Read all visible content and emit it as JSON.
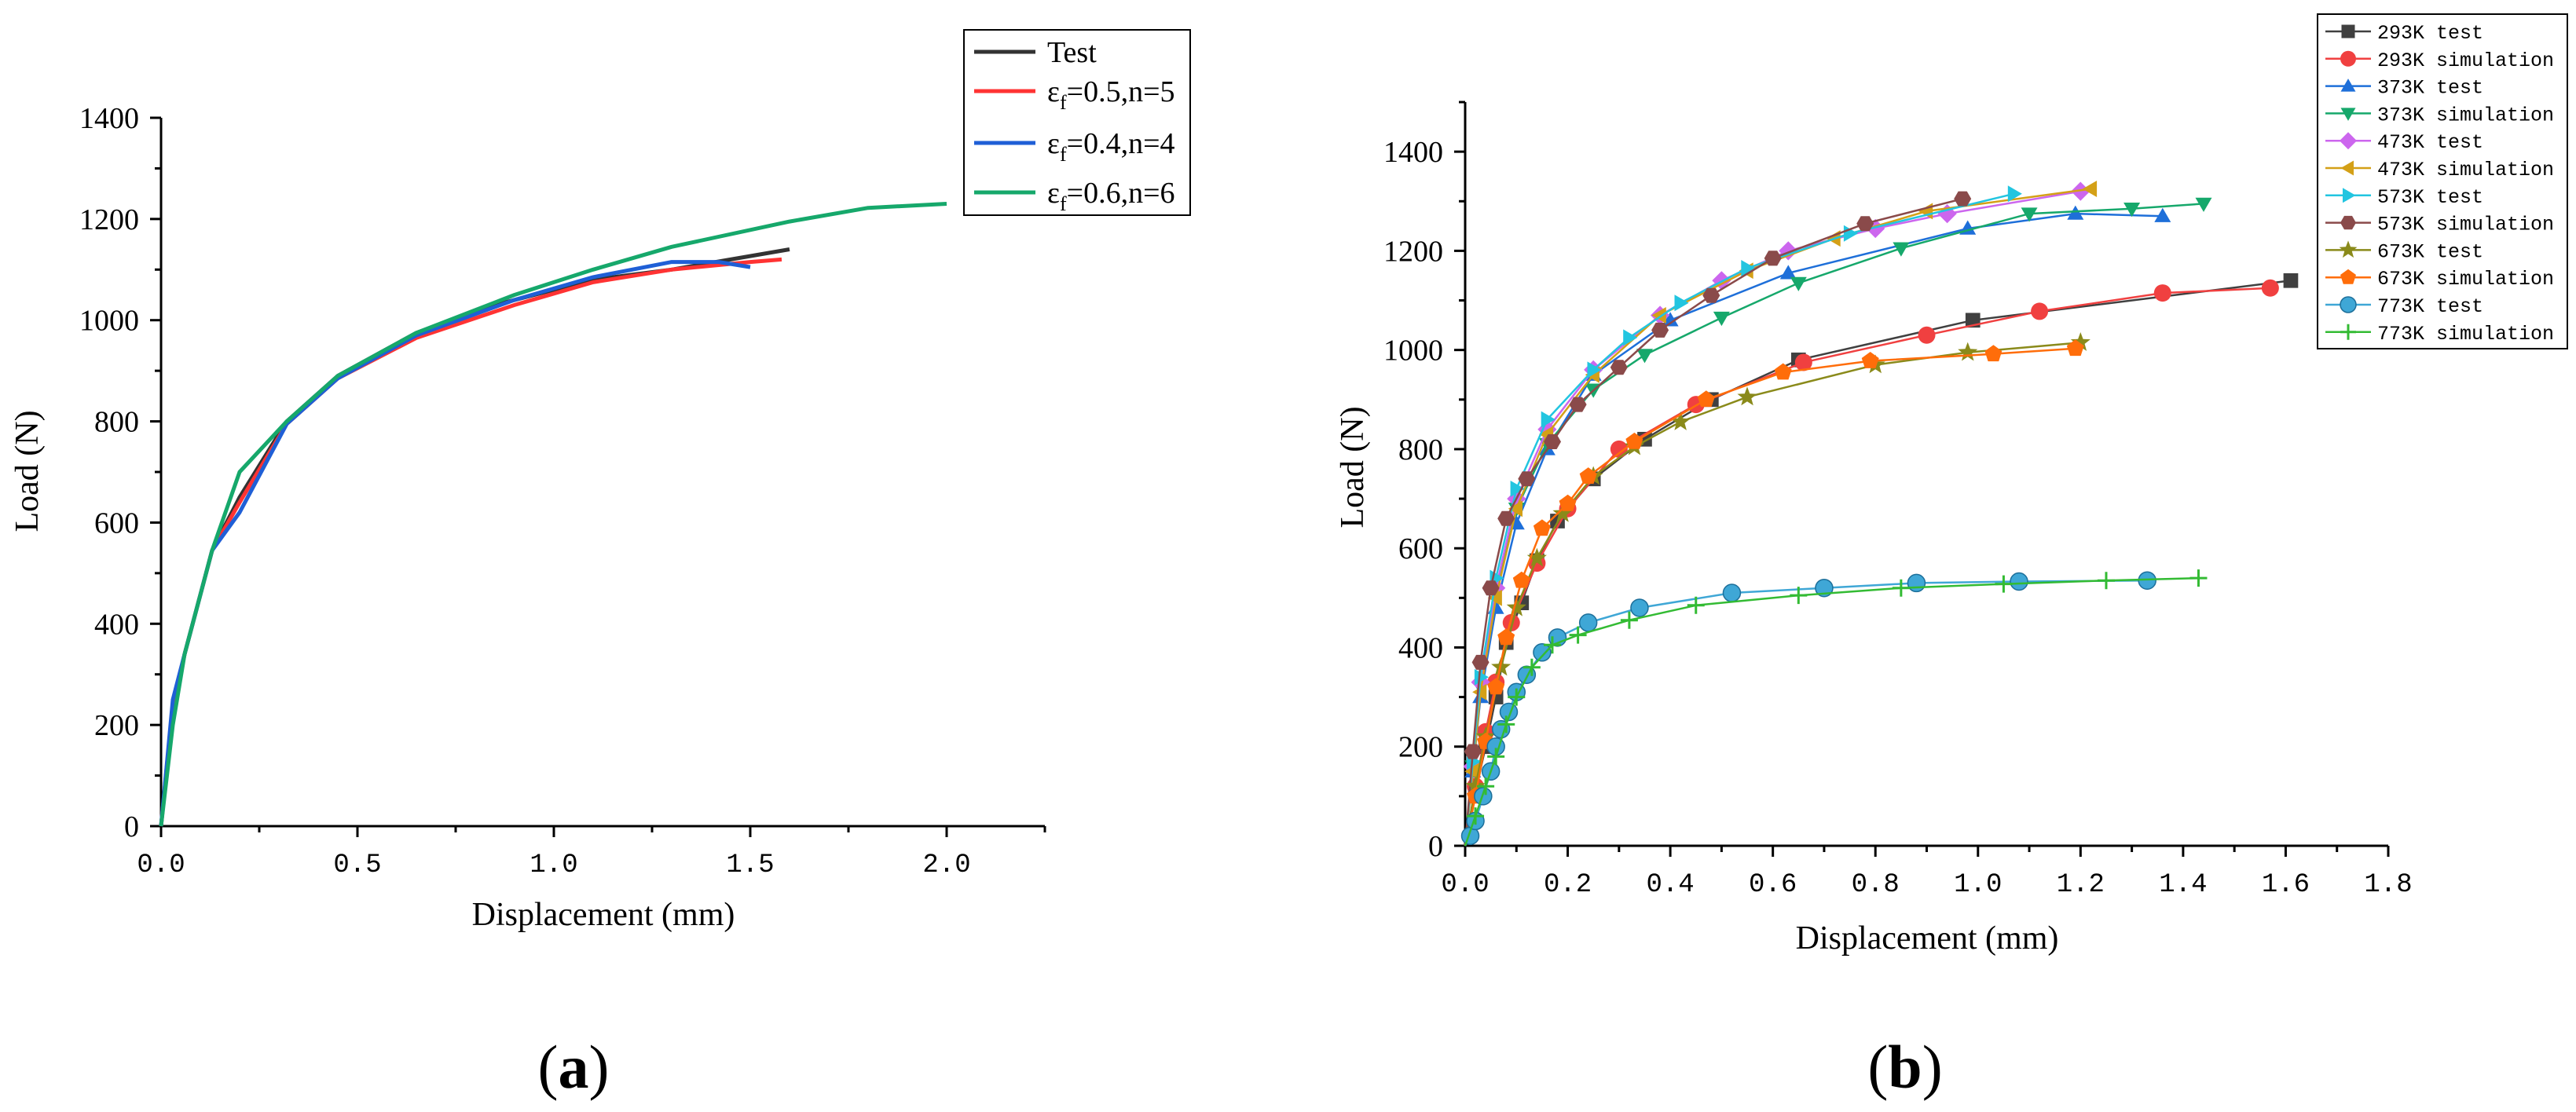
{
  "chart_data": [
    {
      "id": "a",
      "type": "line",
      "panel_label": {
        "open": "(",
        "letter": "a",
        "close": ")"
      },
      "xlabel": "Displacement (mm)",
      "ylabel": "Load (N)",
      "xlim": [
        0,
        2.25
      ],
      "ylim": [
        0,
        1400
      ],
      "x_ticks": [
        "0.0",
        "0.5",
        "1.0",
        "1.5",
        "2.0"
      ],
      "y_ticks": [
        "0",
        "200",
        "400",
        "600",
        "800",
        "1000",
        "1200",
        "1400"
      ],
      "legend_position": "top-right",
      "series": [
        {
          "name": "Test",
          "sym": "",
          "sub": "",
          "rest": "",
          "color": "#333333",
          "points": [
            [
              0,
              0
            ],
            [
              0.03,
              240
            ],
            [
              0.06,
              340
            ],
            [
              0.13,
              545
            ],
            [
              0.2,
              650
            ],
            [
              0.32,
              800
            ],
            [
              0.45,
              890
            ],
            [
              0.65,
              975
            ],
            [
              0.85,
              1030
            ],
            [
              1.0,
              1060
            ],
            [
              1.1,
              1080
            ],
            [
              1.3,
              1100
            ],
            [
              1.45,
              1120
            ],
            [
              1.6,
              1140
            ]
          ]
        },
        {
          "name": "",
          "sym": "ε",
          "sub": "f",
          "rest": "=0.5,n=5",
          "color": "#ff3333",
          "points": [
            [
              0,
              0
            ],
            [
              0.03,
              230
            ],
            [
              0.06,
              340
            ],
            [
              0.13,
              545
            ],
            [
              0.2,
              640
            ],
            [
              0.32,
              795
            ],
            [
              0.45,
              885
            ],
            [
              0.65,
              965
            ],
            [
              0.9,
              1030
            ],
            [
              1.1,
              1075
            ],
            [
              1.3,
              1100
            ],
            [
              1.5,
              1115
            ],
            [
              1.58,
              1120
            ]
          ]
        },
        {
          "name": "",
          "sym": "ε",
          "sub": "f",
          "rest": "=0.4,n=4",
          "color": "#1f5fd6",
          "points": [
            [
              0,
              0
            ],
            [
              0.03,
              250
            ],
            [
              0.06,
              340
            ],
            [
              0.13,
              545
            ],
            [
              0.2,
              620
            ],
            [
              0.32,
              795
            ],
            [
              0.45,
              885
            ],
            [
              0.65,
              970
            ],
            [
              0.9,
              1040
            ],
            [
              1.1,
              1085
            ],
            [
              1.3,
              1115
            ],
            [
              1.42,
              1115
            ],
            [
              1.5,
              1105
            ]
          ]
        },
        {
          "name": "",
          "sym": "ε",
          "sub": "f",
          "rest": "=0.6,n=6",
          "color": "#16a86b",
          "points": [
            [
              0,
              0
            ],
            [
              0.03,
              200
            ],
            [
              0.06,
              340
            ],
            [
              0.13,
              545
            ],
            [
              0.2,
              700
            ],
            [
              0.32,
              800
            ],
            [
              0.45,
              890
            ],
            [
              0.65,
              975
            ],
            [
              0.9,
              1050
            ],
            [
              1.1,
              1100
            ],
            [
              1.3,
              1145
            ],
            [
              1.6,
              1195
            ],
            [
              1.8,
              1222
            ],
            [
              2.0,
              1230
            ]
          ]
        }
      ]
    },
    {
      "id": "b",
      "type": "scatter-line",
      "panel_label": {
        "open": "(",
        "letter": "b",
        "close": ")"
      },
      "xlabel": "Displacement (mm)",
      "ylabel": "Load (N)",
      "xlim": [
        0,
        1.8
      ],
      "ylim": [
        0,
        1500
      ],
      "x_ticks": [
        "0.0",
        "0.2",
        "0.4",
        "0.6",
        "0.8",
        "1.0",
        "1.2",
        "1.4",
        "1.6",
        "1.8"
      ],
      "y_ticks": [
        "0",
        "200",
        "400",
        "600",
        "800",
        "1000",
        "1200",
        "1400"
      ],
      "legend_position": "top-right",
      "series": [
        {
          "name": "293K test",
          "color": "#404040",
          "marker": "square",
          "points": [
            [
              0,
              0
            ],
            [
              0.02,
              110
            ],
            [
              0.04,
              200
            ],
            [
              0.06,
              300
            ],
            [
              0.08,
              410
            ],
            [
              0.11,
              490
            ],
            [
              0.14,
              575
            ],
            [
              0.18,
              655
            ],
            [
              0.25,
              740
            ],
            [
              0.35,
              820
            ],
            [
              0.48,
              900
            ],
            [
              0.65,
              980
            ],
            [
              0.99,
              1060
            ],
            [
              1.61,
              1140
            ]
          ]
        },
        {
          "name": "293K simulation",
          "color": "#f04040",
          "marker": "circle",
          "points": [
            [
              0,
              0
            ],
            [
              0.02,
              120
            ],
            [
              0.04,
              230
            ],
            [
              0.06,
              330
            ],
            [
              0.09,
              450
            ],
            [
              0.14,
              570
            ],
            [
              0.2,
              680
            ],
            [
              0.3,
              800
            ],
            [
              0.45,
              890
            ],
            [
              0.66,
              975
            ],
            [
              0.9,
              1030
            ],
            [
              1.12,
              1078
            ],
            [
              1.36,
              1115
            ],
            [
              1.57,
              1125
            ]
          ]
        },
        {
          "name": "373K test",
          "color": "#1e6fd9",
          "marker": "triangle-up",
          "points": [
            [
              0,
              0
            ],
            [
              0.015,
              150
            ],
            [
              0.03,
              300
            ],
            [
              0.06,
              480
            ],
            [
              0.1,
              650
            ],
            [
              0.16,
              800
            ],
            [
              0.25,
              950
            ],
            [
              0.4,
              1060
            ],
            [
              0.63,
              1155
            ],
            [
              0.98,
              1245
            ],
            [
              1.19,
              1275
            ],
            [
              1.36,
              1270
            ]
          ]
        },
        {
          "name": "373K simulation",
          "color": "#16a86b",
          "marker": "triangle-down",
          "points": [
            [
              0,
              0
            ],
            [
              0.015,
              160
            ],
            [
              0.03,
              320
            ],
            [
              0.06,
              510
            ],
            [
              0.1,
              680
            ],
            [
              0.16,
              810
            ],
            [
              0.25,
              920
            ],
            [
              0.35,
              990
            ],
            [
              0.5,
              1065
            ],
            [
              0.65,
              1135
            ],
            [
              0.85,
              1205
            ],
            [
              1.1,
              1275
            ],
            [
              1.3,
              1285
            ],
            [
              1.44,
              1295
            ]
          ]
        },
        {
          "name": "473K test",
          "color": "#cc66ee",
          "marker": "diamond",
          "points": [
            [
              0,
              0
            ],
            [
              0.015,
              160
            ],
            [
              0.03,
              330
            ],
            [
              0.06,
              520
            ],
            [
              0.1,
              700
            ],
            [
              0.16,
              840
            ],
            [
              0.25,
              960
            ],
            [
              0.38,
              1070
            ],
            [
              0.5,
              1140
            ],
            [
              0.63,
              1200
            ],
            [
              0.8,
              1245
            ],
            [
              0.94,
              1275
            ],
            [
              1.2,
              1320
            ]
          ]
        },
        {
          "name": "473K simulation",
          "color": "#d4a017",
          "marker": "triangle-left",
          "points": [
            [
              0,
              0
            ],
            [
              0.015,
              150
            ],
            [
              0.03,
              310
            ],
            [
              0.06,
              500
            ],
            [
              0.1,
              680
            ],
            [
              0.16,
              830
            ],
            [
              0.25,
              950
            ],
            [
              0.38,
              1070
            ],
            [
              0.55,
              1160
            ],
            [
              0.72,
              1225
            ],
            [
              0.9,
              1280
            ],
            [
              1.22,
              1325
            ]
          ]
        },
        {
          "name": "573K test",
          "color": "#22c5e0",
          "marker": "triangle-right",
          "points": [
            [
              0,
              0
            ],
            [
              0.015,
              170
            ],
            [
              0.03,
              340
            ],
            [
              0.06,
              540
            ],
            [
              0.1,
              720
            ],
            [
              0.16,
              860
            ],
            [
              0.25,
              960
            ],
            [
              0.32,
              1025
            ],
            [
              0.42,
              1095
            ],
            [
              0.55,
              1165
            ],
            [
              0.75,
              1235
            ],
            [
              1.07,
              1315
            ]
          ]
        },
        {
          "name": "573K simulation",
          "color": "#8a4a4a",
          "marker": "hexagon",
          "points": [
            [
              0,
              0
            ],
            [
              0.015,
              190
            ],
            [
              0.03,
              370
            ],
            [
              0.05,
              520
            ],
            [
              0.08,
              660
            ],
            [
              0.12,
              740
            ],
            [
              0.17,
              815
            ],
            [
              0.22,
              890
            ],
            [
              0.3,
              965
            ],
            [
              0.38,
              1040
            ],
            [
              0.48,
              1110
            ],
            [
              0.6,
              1185
            ],
            [
              0.78,
              1255
            ],
            [
              0.97,
              1305
            ]
          ]
        },
        {
          "name": "673K test",
          "color": "#8a8a1a",
          "marker": "star",
          "points": [
            [
              0,
              0
            ],
            [
              0.02,
              120
            ],
            [
              0.04,
              220
            ],
            [
              0.07,
              360
            ],
            [
              0.1,
              480
            ],
            [
              0.14,
              580
            ],
            [
              0.19,
              670
            ],
            [
              0.25,
              745
            ],
            [
              0.33,
              805
            ],
            [
              0.42,
              855
            ],
            [
              0.55,
              905
            ],
            [
              0.8,
              970
            ],
            [
              0.98,
              995
            ],
            [
              1.2,
              1015
            ]
          ]
        },
        {
          "name": "673K simulation",
          "color": "#ff6d0a",
          "marker": "pentagon",
          "points": [
            [
              0,
              0
            ],
            [
              0.02,
              100
            ],
            [
              0.04,
              210
            ],
            [
              0.06,
              320
            ],
            [
              0.08,
              420
            ],
            [
              0.11,
              535
            ],
            [
              0.15,
              640
            ],
            [
              0.2,
              690
            ],
            [
              0.24,
              745
            ],
            [
              0.33,
              815
            ],
            [
              0.47,
              900
            ],
            [
              0.62,
              955
            ],
            [
              0.79,
              978
            ],
            [
              1.03,
              992
            ],
            [
              1.19,
              1003
            ]
          ]
        },
        {
          "name": "773K test",
          "color": "#3fa7d6",
          "marker": "sphere",
          "points": [
            [
              0,
              0
            ],
            [
              0.01,
              20
            ],
            [
              0.02,
              50
            ],
            [
              0.035,
              100
            ],
            [
              0.05,
              150
            ],
            [
              0.06,
              200
            ],
            [
              0.07,
              235
            ],
            [
              0.085,
              270
            ],
            [
              0.1,
              310
            ],
            [
              0.12,
              345
            ],
            [
              0.15,
              390
            ],
            [
              0.18,
              420
            ],
            [
              0.24,
              450
            ],
            [
              0.34,
              480
            ],
            [
              0.52,
              510
            ],
            [
              0.7,
              520
            ],
            [
              0.88,
              530
            ],
            [
              1.08,
              533
            ],
            [
              1.33,
              535
            ]
          ]
        },
        {
          "name": "773K simulation",
          "color": "#33bb33",
          "marker": "plus",
          "points": [
            [
              0,
              0
            ],
            [
              0.02,
              60
            ],
            [
              0.04,
              120
            ],
            [
              0.06,
              180
            ],
            [
              0.08,
              245
            ],
            [
              0.1,
              300
            ],
            [
              0.13,
              360
            ],
            [
              0.17,
              405
            ],
            [
              0.22,
              425
            ],
            [
              0.32,
              455
            ],
            [
              0.45,
              485
            ],
            [
              0.65,
              505
            ],
            [
              0.85,
              520
            ],
            [
              1.05,
              528
            ],
            [
              1.25,
              535
            ],
            [
              1.43,
              540
            ]
          ]
        }
      ]
    }
  ]
}
